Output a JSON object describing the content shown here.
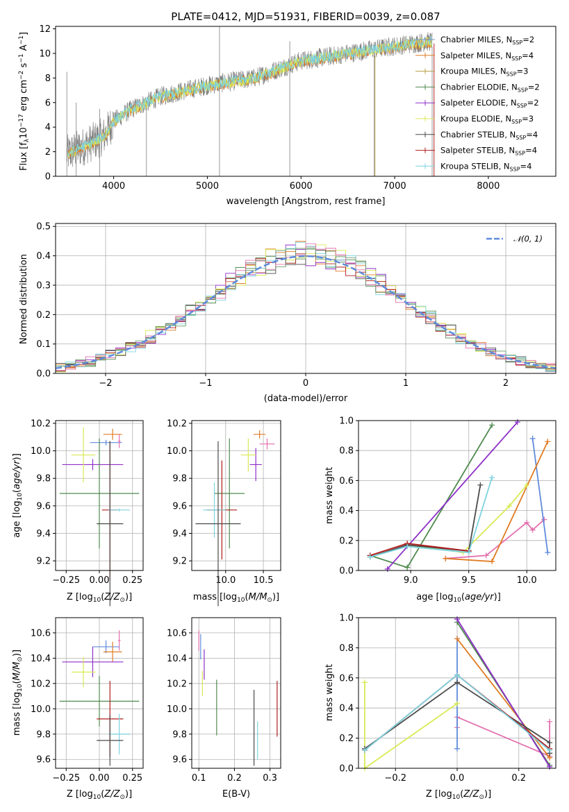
{
  "colors": {
    "s1": "#4c72b0",
    "s2": "#dd8452",
    "s3": "#55a868",
    "s4": "#9b2fd0",
    "s5": "#d4ea4a",
    "s6": "#555555",
    "s7": "#b22222",
    "s8": "#7fd1d8",
    "pink": "#e36fae",
    "blue2": "#5f8bdb",
    "orange": "#e07b22",
    "green": "#4f8a4f",
    "purple": "#8e2fc8",
    "yellow": "#d9ea55",
    "dark": "#4a4a4a",
    "red": "#b01c1c",
    "cyan": "#7dd3df",
    "gray": "#808080"
  },
  "panels": {
    "spectrum": {
      "title": "PLATE=0412, MJD=51931, FIBERID=0039, z=0.087",
      "xlabel": "wavelength [Angstrom, rest frame]",
      "xticks": [
        "4000",
        "5000",
        "6000",
        "7000",
        "8000"
      ],
      "yticks": [
        "0",
        "2",
        "4",
        "6",
        "8",
        "10",
        "12"
      ]
    },
    "residuals": {
      "xlabel": "(data-model)/error",
      "ylabel": "Normed distribution",
      "xticks": [
        "−2",
        "−1",
        "0",
        "1",
        "2"
      ],
      "yticks": [
        "0.0",
        "0.1",
        "0.2",
        "0.3",
        "0.4",
        "0.5"
      ],
      "legend": "𝒩(0, 1)"
    },
    "age_z": {
      "ylabel": "age  [log₁₀(age/yr)]",
      "xticks": [
        "−0.25",
        "0.00",
        "0.25"
      ],
      "yticks": [
        "9.2",
        "9.4",
        "9.6",
        "9.8",
        "10.0",
        "10.2"
      ]
    },
    "age_mass": {
      "xticks": [
        "10.0",
        "10.5"
      ],
      "yticks": [
        "9.2",
        "9.4",
        "9.6",
        "9.8",
        "10.0",
        "10.2"
      ]
    },
    "mw_age": {
      "ylabel": "mass weight",
      "xticks": [
        "9.0",
        "9.5",
        "10.0"
      ],
      "yticks": [
        "0.0",
        "0.2",
        "0.4",
        "0.6",
        "0.8",
        "1.0"
      ]
    },
    "mass_z": {
      "xticks": [
        "−0.25",
        "0.00",
        "0.25"
      ],
      "yticks": [
        "9.6",
        "9.8",
        "10.0",
        "10.2",
        "10.4",
        "10.6"
      ]
    },
    "mass_ebv": {
      "xlabel": "E(B-V)",
      "xticks": [
        "0.1",
        "0.2",
        "0.3"
      ],
      "yticks": [
        "9.6",
        "9.8",
        "10.0",
        "10.2",
        "10.4",
        "10.6"
      ]
    },
    "mw_z": {
      "ylabel": "mass weight",
      "xticks": [
        "−0.2",
        "0.0",
        "0.2"
      ],
      "yticks": [
        "0.0",
        "0.2",
        "0.4",
        "0.6",
        "0.8",
        "1.0"
      ]
    }
  },
  "chart_data": [
    {
      "type": "line",
      "title": "PLATE=0412, MJD=51931, FIBERID=0039, z=0.087",
      "xlabel": "wavelength [Angstrom, rest frame]",
      "ylabel": "Flux [f_λ 10^-17 erg cm^-2 s^-1 A^-1]",
      "xlim": [
        3380,
        8720
      ],
      "ylim": [
        0,
        12.2
      ],
      "legend_placement": "top-right",
      "legend": [
        "Chabrier MILES, N_SSP=2",
        "Salpeter MILES, N_SSP=4",
        "Kroupa MILES, N_SSP=3",
        "Chabrier ELODIE, N_SSP=2",
        "Salpeter ELODIE, N_SSP=2",
        "Kroupa ELODIE, N_SSP=3",
        "Chabrier STELIB, N_SSP=4",
        "Salpeter STELIB, N_SSP=4",
        "Kroupa STELIB, N_SSP=4"
      ],
      "data_envelope": {
        "x": [
          3500,
          3700,
          3900,
          4000,
          4200,
          4500,
          5000,
          5500,
          6000,
          6500,
          7000,
          7400
        ],
        "y": [
          1.8,
          2.5,
          3.3,
          4.5,
          5.5,
          6.5,
          7.4,
          8.0,
          9.4,
          10.0,
          10.6,
          11.0
        ]
      }
    },
    {
      "type": "bar",
      "title": "",
      "xlabel": "(data-model)/error",
      "ylabel": "Normed distribution",
      "xlim": [
        -2.5,
        2.5
      ],
      "ylim": [
        0,
        0.51
      ],
      "grid": true,
      "reference_curve": "N(0,1) gaussian",
      "legend_placement": "top-right"
    },
    {
      "type": "scatter",
      "title": "",
      "xlabel": "Z [log10(Z/Z_sun)]",
      "ylabel": "age [log10(age/yr)]",
      "xlim": [
        -0.33,
        0.33
      ],
      "ylim": [
        9.13,
        10.22
      ],
      "points": [
        {
          "x": 0.1,
          "y": 10.12,
          "xerr": 0.07,
          "yerr": 0.04
        },
        {
          "x": 0.05,
          "y": 10.06,
          "xerr": 0.12,
          "yerr": 0.02
        },
        {
          "x": 0.15,
          "y": 10.07,
          "xerr": 0.01,
          "yerr": 0.05
        },
        {
          "x": -0.05,
          "y": 9.9,
          "xerr": 0.23,
          "yerr": 0.04
        },
        {
          "x": -0.12,
          "y": 9.97,
          "xerr": 0.09,
          "yerr": 0.2
        },
        {
          "x": 0.0,
          "y": 9.69,
          "xerr": 0.3,
          "yerr": 0.4
        },
        {
          "x": 0.08,
          "y": 9.57,
          "xerr": 0.06,
          "yerr": 0.5
        },
        {
          "x": 0.15,
          "y": 9.57,
          "xerr": 0.08,
          "yerr": 0.01
        },
        {
          "x": 0.08,
          "y": 9.47,
          "xerr": 0.1,
          "yerr": 0.6
        }
      ]
    },
    {
      "type": "scatter",
      "title": "",
      "xlabel": "mass [log10(M/M_sun)]",
      "ylabel": "",
      "xlim": [
        9.55,
        10.73
      ],
      "ylim": [
        9.13,
        10.22
      ],
      "points": [
        {
          "x": 10.45,
          "y": 10.12,
          "xerr": 0.08,
          "yerr": 0.03
        },
        {
          "x": 10.55,
          "y": 10.05,
          "xerr": 0.1,
          "yerr": 0.04
        },
        {
          "x": 10.4,
          "y": 9.9,
          "xerr": 0.08,
          "yerr": 0.12
        },
        {
          "x": 10.3,
          "y": 9.97,
          "xerr": 0.1,
          "yerr": 0.12
        },
        {
          "x": 10.05,
          "y": 9.69,
          "xerr": 0.2,
          "yerr": 0.4
        },
        {
          "x": 9.95,
          "y": 9.57,
          "xerr": 0.2,
          "yerr": 0.36
        },
        {
          "x": 9.85,
          "y": 9.57,
          "xerr": 0.15,
          "yerr": 0.2
        },
        {
          "x": 9.9,
          "y": 9.47,
          "xerr": 0.3,
          "yerr": 0.6
        }
      ]
    },
    {
      "type": "line",
      "title": "",
      "xlabel": "age [log10(age/yr)]",
      "ylabel": "mass weight",
      "xlim": [
        8.55,
        10.25
      ],
      "ylim": [
        0,
        1
      ],
      "series": [
        {
          "color": "pink",
          "x": [
            9.3,
            9.65,
            10.0,
            10.05,
            10.15
          ],
          "y": [
            0.08,
            0.1,
            0.32,
            0.27,
            0.34
          ]
        },
        {
          "color": "blue2",
          "x": [
            10.05,
            10.18
          ],
          "y": [
            0.88,
            0.12
          ]
        },
        {
          "color": "orange",
          "x": [
            9.3,
            9.7,
            10.18
          ],
          "y": [
            0.08,
            0.06,
            0.86
          ]
        },
        {
          "color": "green",
          "x": [
            8.65,
            8.97,
            9.7
          ],
          "y": [
            0.1,
            0.02,
            0.97
          ]
        },
        {
          "color": "purple",
          "x": [
            8.8,
            9.92
          ],
          "y": [
            0.01,
            0.99
          ]
        },
        {
          "color": "yellow",
          "x": [
            8.97,
            9.45,
            9.85,
            10.0
          ],
          "y": [
            0.17,
            0.12,
            0.43,
            0.57
          ]
        },
        {
          "color": "dark",
          "x": [
            8.65,
            8.97,
            9.5,
            9.6
          ],
          "y": [
            0.09,
            0.17,
            0.13,
            0.57
          ]
        },
        {
          "color": "red",
          "x": [
            8.65,
            8.97,
            9.5
          ],
          "y": [
            0.1,
            0.18,
            0.13
          ]
        },
        {
          "color": "cyan",
          "x": [
            8.65,
            8.97,
            9.5,
            9.7
          ],
          "y": [
            0.09,
            0.16,
            0.12,
            0.62
          ]
        }
      ]
    },
    {
      "type": "scatter",
      "title": "",
      "xlabel": "Z [log10(Z/Z_sun)]",
      "ylabel": "mass [log10(M/M_sun)]",
      "xlim": [
        -0.33,
        0.33
      ],
      "ylim": [
        9.53,
        10.72
      ],
      "points": [
        {
          "x": 0.15,
          "y": 10.54,
          "xerr": 0.01,
          "yerr": 0.08
        },
        {
          "x": 0.05,
          "y": 10.49,
          "xerr": 0.1,
          "yerr": 0.05
        },
        {
          "x": 0.1,
          "y": 10.45,
          "xerr": 0.07,
          "yerr": 0.08
        },
        {
          "x": -0.05,
          "y": 10.37,
          "xerr": 0.23,
          "yerr": 0.12
        },
        {
          "x": -0.12,
          "y": 10.29,
          "xerr": 0.09,
          "yerr": 0.12
        },
        {
          "x": 0.0,
          "y": 10.06,
          "xerr": 0.3,
          "yerr": 0.2
        },
        {
          "x": 0.08,
          "y": 9.92,
          "xerr": 0.1,
          "yerr": 0.3
        },
        {
          "x": 0.15,
          "y": 9.8,
          "xerr": 0.08,
          "yerr": 0.16
        },
        {
          "x": 0.08,
          "y": 9.75,
          "xerr": 0.1,
          "yerr": 0.2
        }
      ]
    },
    {
      "type": "scatter",
      "title": "",
      "xlabel": "E(B-V)",
      "ylabel": "",
      "xlim": [
        0.08,
        0.33
      ],
      "ylim": [
        9.53,
        10.72
      ],
      "points": [
        {
          "x": 0.1,
          "y": 10.54,
          "yerr": 0.08
        },
        {
          "x": 0.105,
          "y": 10.49,
          "yerr": 0.1
        },
        {
          "x": 0.115,
          "y": 10.35,
          "yerr": 0.12
        },
        {
          "x": 0.11,
          "y": 10.2,
          "yerr": 0.1
        },
        {
          "x": 0.15,
          "y": 10.01,
          "yerr": 0.22
        },
        {
          "x": 0.255,
          "y": 9.85,
          "yerr": 0.3
        },
        {
          "x": 0.265,
          "y": 9.75,
          "yerr": 0.15
        },
        {
          "x": 0.32,
          "y": 10.0,
          "yerr": 0.22
        }
      ]
    },
    {
      "type": "line",
      "title": "",
      "xlabel": "Z [log10(Z/Z_sun)]",
      "ylabel": "mass weight",
      "xlim": [
        -0.32,
        0.32
      ],
      "ylim": [
        0,
        1
      ],
      "series": [
        {
          "color": "pink",
          "x": [
            0.0,
            0.0,
            0.3,
            0.3
          ],
          "y": [
            0.27,
            0.34,
            0.08,
            0.31
          ]
        },
        {
          "color": "blue2",
          "x": [
            0.0,
            0.0
          ],
          "y": [
            0.13,
            0.86
          ]
        },
        {
          "color": "orange",
          "x": [
            0.0,
            0.3
          ],
          "y": [
            0.86,
            0.07
          ]
        },
        {
          "color": "green",
          "x": [
            0.0,
            0.3
          ],
          "y": [
            0.97,
            0.02
          ]
        },
        {
          "color": "purple",
          "x": [
            0.0,
            0.3
          ],
          "y": [
            0.99,
            0.01
          ]
        },
        {
          "color": "yellow",
          "x": [
            -0.3,
            -0.3,
            0.0
          ],
          "y": [
            0.57,
            0.0,
            0.43
          ]
        },
        {
          "color": "dark",
          "x": [
            -0.3,
            0.0,
            0.3,
            0.3
          ],
          "y": [
            0.13,
            0.57,
            0.17,
            0.1
          ]
        },
        {
          "color": "red",
          "x": [
            -0.3,
            0.0,
            0.3
          ],
          "y": [
            0.12,
            0.62,
            0.13
          ]
        },
        {
          "color": "cyan",
          "x": [
            -0.3,
            0.0,
            0.3
          ],
          "y": [
            0.12,
            0.62,
            0.12
          ]
        }
      ]
    }
  ]
}
